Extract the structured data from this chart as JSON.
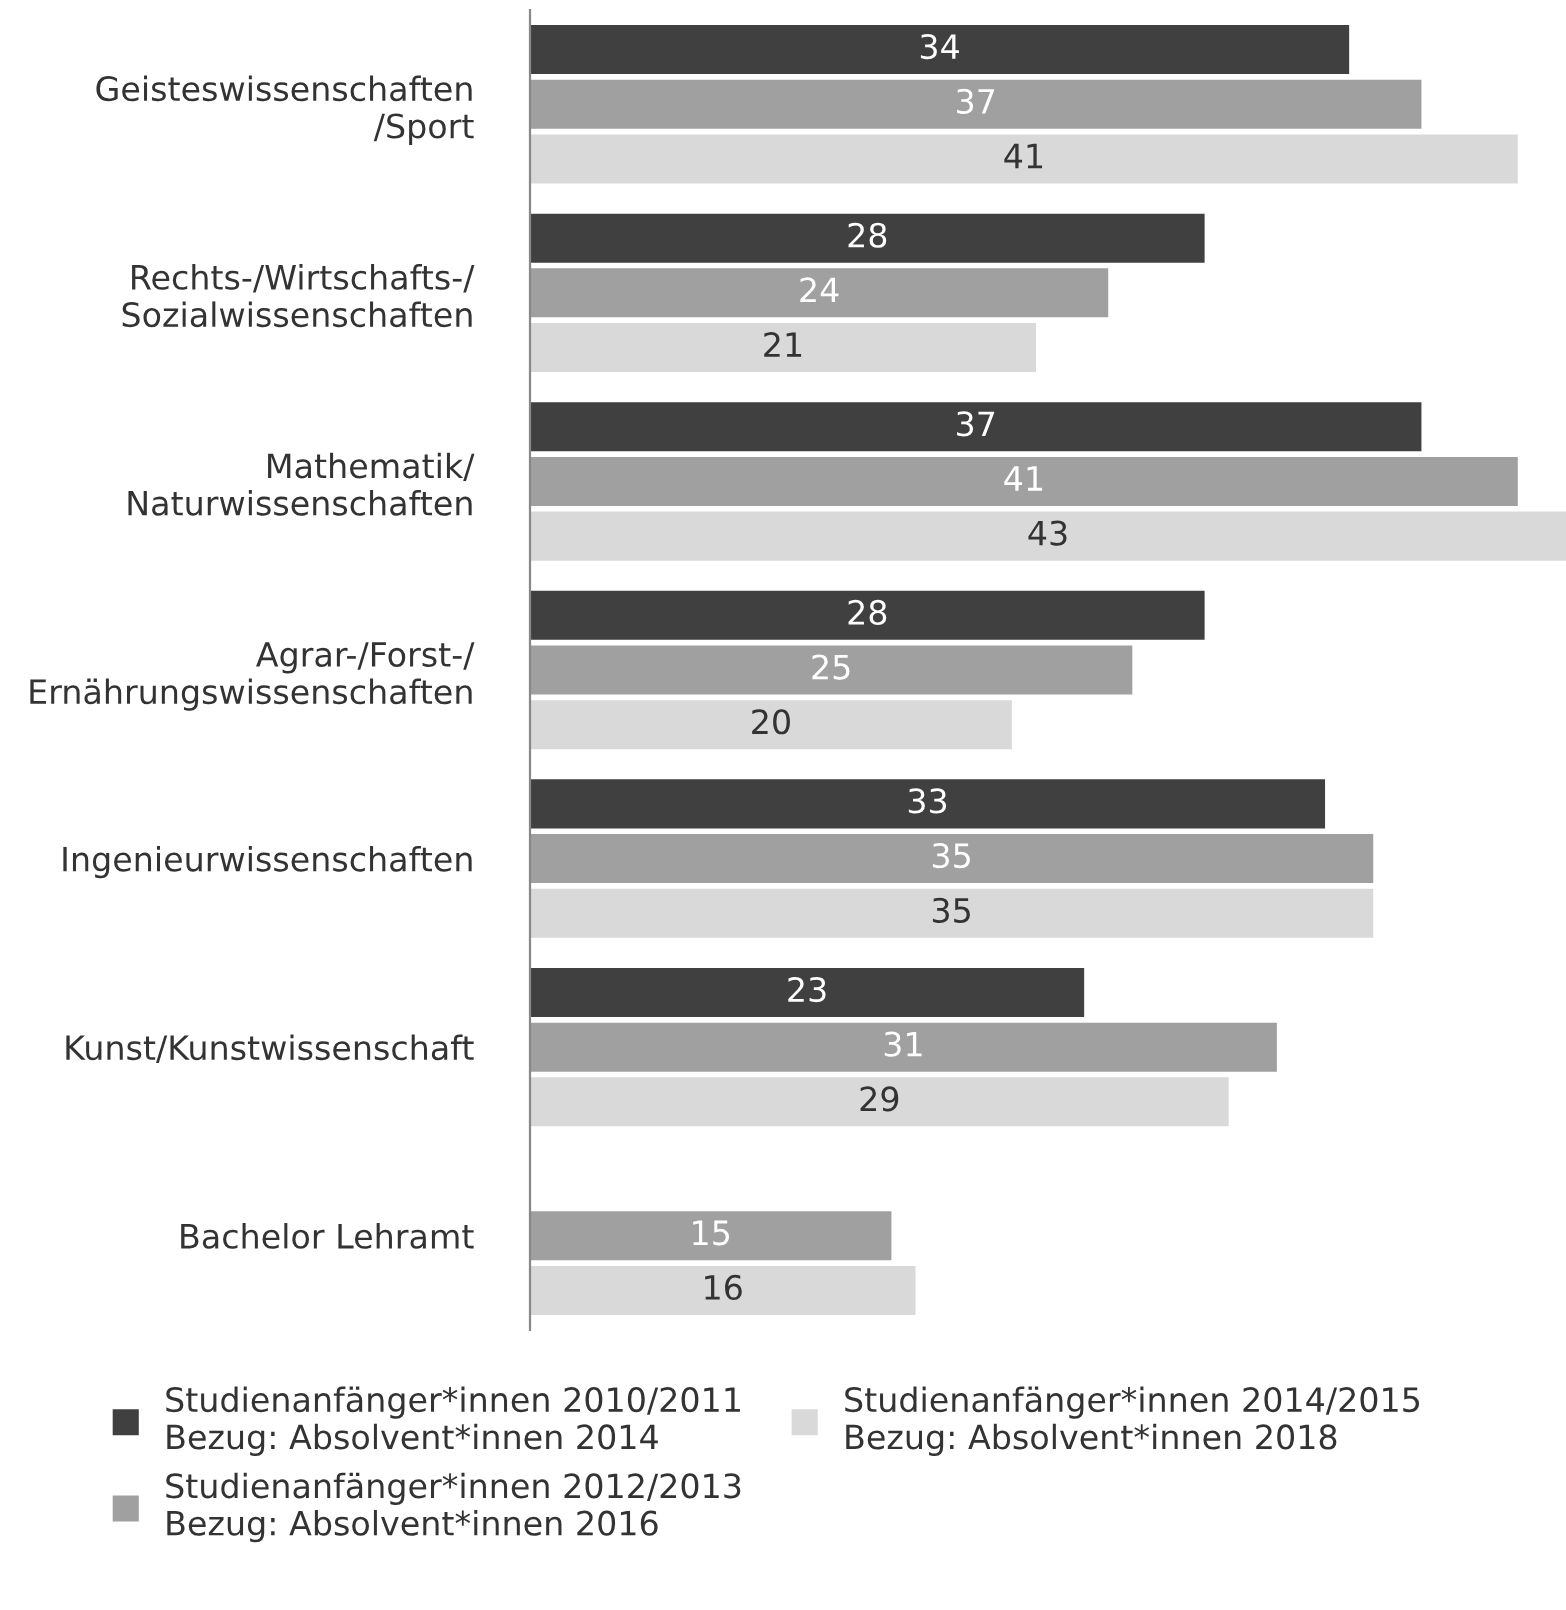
{
  "chart_data": {
    "type": "bar",
    "orientation": "horizontal",
    "data_labels": true,
    "legend": "bottom",
    "grid": false,
    "categories": [
      "Geisteswissenschaften\n/Sport",
      "Rechts-/Wirtschafts-/\nSozialwissenschaften",
      "Mathematik/\nNaturwissenschaften",
      "Agrar-/Forst-/\nErnährungswissenschaften",
      "Ingenieurwissenschaften",
      "Kunst/Kunstwissenschaft",
      "Bachelor Lehramt"
    ],
    "series": [
      {
        "name": "Studienanfänger*innen 2010/2011\nBezug: Absolvent*innen 2014",
        "color": "#404040",
        "values": [
          34,
          28,
          37,
          28,
          33,
          23,
          null
        ]
      },
      {
        "name": "Studienanfänger*innen 2012/2013\nBezug: Absolvent*innen 2016",
        "color": "#a0a0a0",
        "values": [
          37,
          24,
          41,
          25,
          35,
          31,
          15
        ]
      },
      {
        "name": "Studienanfänger*innen 2014/2015\nBezug: Absolvent*innen 2018",
        "color": "#d9d9d9",
        "values": [
          41,
          21,
          43,
          20,
          35,
          29,
          16
        ]
      }
    ]
  }
}
